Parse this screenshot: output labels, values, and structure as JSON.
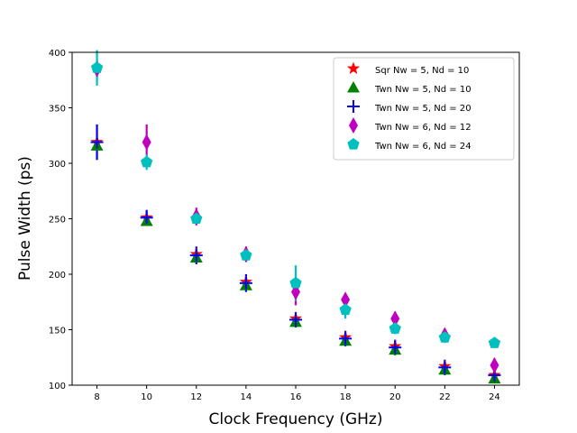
{
  "chart_data": {
    "type": "scatter",
    "title": "",
    "xlabel": "Clock Frequency (GHz)",
    "ylabel": "Pulse Width (ps)",
    "xlim": [
      7,
      25
    ],
    "ylim": [
      100,
      400
    ],
    "xticks": [
      8,
      10,
      12,
      14,
      16,
      18,
      20,
      22,
      24
    ],
    "yticks": [
      100,
      150,
      200,
      250,
      300,
      350,
      400
    ],
    "grid": false,
    "legend_position": "top-right",
    "series": [
      {
        "name": "Sqr Nw = 5, Nd = 10",
        "marker": "star",
        "color": "#ff0000",
        "x": [
          8,
          10,
          12,
          14,
          16,
          18,
          20,
          22,
          24
        ],
        "y": [
          319,
          251,
          218,
          193,
          160,
          143,
          135,
          117,
          109
        ],
        "yerr": [
          3,
          3,
          3,
          3,
          3,
          3,
          3,
          3,
          3
        ]
      },
      {
        "name": "Twn Nw = 5, Nd = 10",
        "marker": "triangle",
        "color": "#008000",
        "x": [
          8,
          10,
          12,
          14,
          16,
          18,
          20,
          22,
          24
        ],
        "y": [
          316,
          248,
          215,
          190,
          157,
          140,
          132,
          114,
          106
        ],
        "yerr": [
          3,
          3,
          3,
          3,
          3,
          3,
          3,
          3,
          3
        ]
      },
      {
        "name": "Twn Nw = 5, Nd = 20",
        "marker": "plus",
        "color": "#0000ff",
        "x": [
          8,
          10,
          12,
          14,
          16,
          18,
          20,
          22,
          24
        ],
        "y": [
          319,
          251,
          217,
          192,
          159,
          142,
          134,
          116,
          109
        ],
        "yerr": [
          16,
          7,
          8,
          8,
          7,
          7,
          7,
          7,
          7
        ]
      },
      {
        "name": "Twn Nw = 6, Nd = 12",
        "marker": "thin_diamond",
        "color": "#bf00bf",
        "x": [
          8,
          10,
          12,
          14,
          16,
          18,
          20,
          22,
          24
        ],
        "y": [
          385,
          319,
          252,
          218,
          184,
          177,
          160,
          145,
          118
        ],
        "yerr": [
          8,
          16,
          8,
          7,
          12,
          6,
          6,
          6,
          6
        ]
      },
      {
        "name": "Twn Nw = 6, Nd = 24",
        "marker": "pentagon",
        "color": "#00bfbf",
        "x": [
          8,
          10,
          12,
          14,
          16,
          18,
          20,
          22,
          24
        ],
        "y": [
          386,
          301,
          250,
          217,
          192,
          168,
          151,
          143,
          138
        ],
        "yerr": [
          16,
          7,
          4,
          4,
          16,
          8,
          5,
          4,
          3
        ]
      }
    ]
  }
}
